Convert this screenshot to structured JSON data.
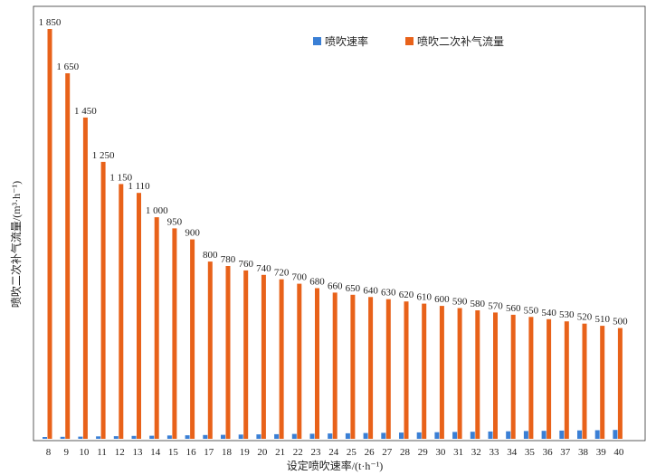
{
  "chart_data": {
    "type": "bar",
    "xlabel": "设定喷吹速率/(t·h⁻¹)",
    "ylabel": "喷吹二次补气流量/(m³·h⁻¹)",
    "ylim": [
      0,
      1900
    ],
    "grid": false,
    "legend_position": "top-right",
    "categories": [
      "8",
      "9",
      "10",
      "11",
      "12",
      "13",
      "14",
      "15",
      "16",
      "17",
      "18",
      "19",
      "20",
      "21",
      "22",
      "23",
      "24",
      "25",
      "26",
      "27",
      "28",
      "29",
      "30",
      "31",
      "32",
      "33",
      "34",
      "35",
      "36",
      "37",
      "38",
      "39",
      "40"
    ],
    "series": [
      {
        "name": "喷吹速率",
        "color": "#3a7fd5",
        "values": [
          8,
          9,
          10,
          11,
          12,
          13,
          14,
          15,
          16,
          17,
          18,
          19,
          20,
          21,
          22,
          23,
          24,
          25,
          26,
          27,
          28,
          29,
          30,
          31,
          32,
          33,
          34,
          35,
          36,
          37,
          38,
          39,
          40
        ]
      },
      {
        "name": "喷吹二次补气流量",
        "color": "#e8621a",
        "values": [
          1850,
          1650,
          1450,
          1250,
          1150,
          1110,
          1000,
          950,
          900,
          800,
          780,
          760,
          740,
          720,
          700,
          680,
          660,
          650,
          640,
          630,
          620,
          610,
          600,
          590,
          580,
          570,
          560,
          550,
          540,
          530,
          520,
          510,
          500
        ],
        "data_labels": [
          "1 850",
          "1 650",
          "1 450",
          "1 250",
          "1 150",
          "1 110",
          "1 000",
          "950",
          "900",
          "800",
          "780",
          "760",
          "740",
          "720",
          "700",
          "680",
          "660",
          "650",
          "640",
          "630",
          "620",
          "610",
          "600",
          "590",
          "580",
          "570",
          "560",
          "550",
          "540",
          "530",
          "520",
          "510",
          "500"
        ]
      }
    ]
  }
}
